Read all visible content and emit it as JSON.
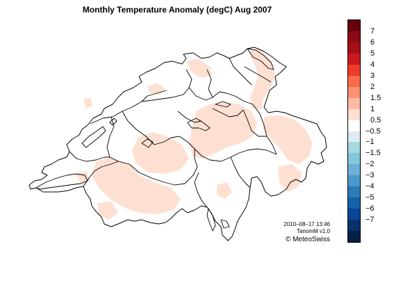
{
  "title": "Monthly Temperature Anomaly (degC) Aug 2007",
  "credits": {
    "timestamp": "2010–08–17 13:46",
    "product": "TanomM v1.0",
    "copyright": "© MeteoSwiss"
  },
  "legend": {
    "colors": [
      "#67000d",
      "#8b0a15",
      "#a50f15",
      "#cb181d",
      "#ef3b2c",
      "#fb6a4a",
      "#fc9272",
      "#fcbba1",
      "#fee0d2",
      "#ffffff",
      "#deebf7",
      "#a6d9e0",
      "#82c8d8",
      "#6baed6",
      "#4a98c9",
      "#2c7bb6",
      "#1361a9",
      "#084594",
      "#08306b",
      "#051f45"
    ],
    "labels": [
      "7",
      "6",
      "5",
      "4",
      "3",
      "2",
      "1.5",
      "1",
      "0.5",
      "−0.5",
      "−1",
      "−1.5",
      "−2",
      "−3",
      "−4",
      "−5",
      "−6",
      "−7"
    ]
  },
  "map": {
    "anomaly_fill": "#fee0d2",
    "outline_color": "#000000"
  }
}
